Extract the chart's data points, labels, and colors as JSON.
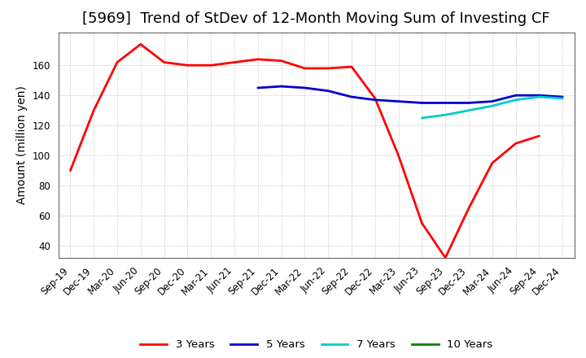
{
  "title": "[5969]  Trend of StDev of 12-Month Moving Sum of Investing CF",
  "ylabel": "Amount (million yen)",
  "x_labels": [
    "Sep-19",
    "Dec-19",
    "Mar-20",
    "Jun-20",
    "Sep-20",
    "Dec-20",
    "Mar-21",
    "Jun-21",
    "Sep-21",
    "Dec-21",
    "Mar-22",
    "Jun-22",
    "Sep-22",
    "Dec-22",
    "Mar-23",
    "Jun-23",
    "Sep-23",
    "Dec-23",
    "Mar-24",
    "Jun-24",
    "Sep-24",
    "Dec-24"
  ],
  "ylim": [
    32,
    182
  ],
  "yticks": [
    40,
    60,
    80,
    100,
    120,
    140,
    160
  ],
  "series": {
    "3 Years": {
      "color": "#FF0000",
      "linewidth": 2.0,
      "x_indices": [
        0,
        1,
        2,
        3,
        4,
        5,
        6,
        7,
        8,
        9,
        10,
        11,
        12,
        13,
        14,
        15,
        16,
        17,
        18,
        19,
        20
      ],
      "values": [
        90,
        130,
        162,
        174,
        162,
        160,
        160,
        162,
        164,
        163,
        158,
        158,
        159,
        138,
        100,
        55,
        32,
        65,
        95,
        108,
        113
      ]
    },
    "5 Years": {
      "color": "#0000CD",
      "linewidth": 2.0,
      "x_indices": [
        8,
        9,
        10,
        11,
        12,
        13,
        14,
        15,
        16,
        17,
        18,
        19,
        20,
        21
      ],
      "values": [
        145,
        146,
        145,
        143,
        139,
        137,
        136,
        135,
        135,
        135,
        136,
        140,
        140,
        139
      ]
    },
    "7 Years": {
      "color": "#00CCCC",
      "linewidth": 2.0,
      "x_indices": [
        15,
        16,
        17,
        18,
        19,
        20,
        21
      ],
      "values": [
        125,
        127,
        130,
        133,
        137,
        139,
        138
      ]
    },
    "10 Years": {
      "color": "#008000",
      "linewidth": 2.0,
      "x_indices": [],
      "values": []
    }
  },
  "legend": {
    "labels": [
      "3 Years",
      "5 Years",
      "7 Years",
      "10 Years"
    ],
    "colors": [
      "#FF0000",
      "#0000CD",
      "#00CCCC",
      "#008000"
    ]
  },
  "background_color": "#FFFFFF",
  "grid_color": "#AAAAAA",
  "title_fontsize": 13,
  "label_fontsize": 10,
  "tick_fontsize": 8.5
}
